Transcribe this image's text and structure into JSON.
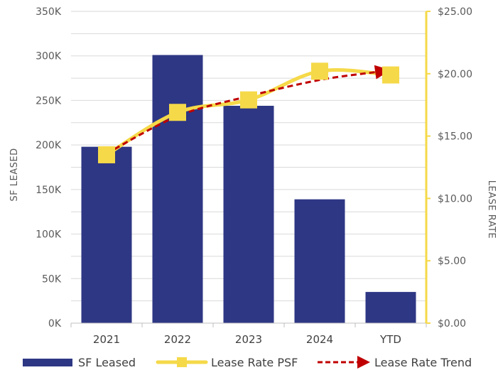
{
  "chart_data": {
    "type": "bar",
    "categories": [
      "2021",
      "2022",
      "2023",
      "2024",
      "YTD"
    ],
    "series": [
      {
        "name": "SF Leased",
        "kind": "bar",
        "axis": "left",
        "values": [
          198000,
          301000,
          244000,
          139000,
          35000
        ]
      },
      {
        "name": "Lease Rate PSF",
        "kind": "line",
        "axis": "right",
        "values": [
          13.5,
          16.9,
          17.9,
          20.2,
          19.9
        ]
      },
      {
        "name": "Lease Rate Trend",
        "kind": "trendline",
        "axis": "right",
        "values": [
          13.6,
          16.6,
          18.2,
          19.5,
          20.3
        ]
      }
    ],
    "ylabel": "SF LEASED",
    "y2label": "LEASE RATE",
    "ylim": [
      0,
      350000
    ],
    "y2lim": [
      0,
      25
    ],
    "yticks": [
      "0K",
      "50K",
      "100K",
      "150K",
      "200K",
      "250K",
      "300K",
      "350K"
    ],
    "y2ticks": [
      "$0.00",
      "$5.00",
      "$10.00",
      "$15.00",
      "$20.00",
      "$25.00"
    ],
    "grid": true,
    "legend_position": "bottom",
    "colors": {
      "bar": "#2e3784",
      "line": "#f5d949",
      "trend": "#c00000",
      "grid": "#d9d9d9",
      "axis2": "#f5d949"
    }
  }
}
